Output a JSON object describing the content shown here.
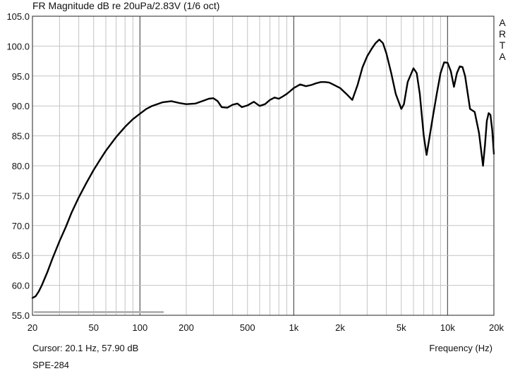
{
  "chart_data": {
    "type": "line",
    "title": "FR Magnitude dB re 20uPa/2.83V (1/6 oct)",
    "xlabel": "Frequency (Hz)",
    "ylabel": "",
    "x_scale": "log",
    "xlim": [
      20,
      20000
    ],
    "ylim": [
      55,
      105
    ],
    "grid": true,
    "y_ticks": [
      "105.0",
      "100.0",
      "95.0",
      "90.0",
      "85.0",
      "80.0",
      "75.0",
      "70.0",
      "65.0",
      "60.0",
      "55.0"
    ],
    "x_ticks": [
      {
        "value": 20,
        "label": "20"
      },
      {
        "value": 50,
        "label": "50"
      },
      {
        "value": 100,
        "label": "100"
      },
      {
        "value": 200,
        "label": "200"
      },
      {
        "value": 500,
        "label": "500"
      },
      {
        "value": 1000,
        "label": "1k"
      },
      {
        "value": 2000,
        "label": "2k"
      },
      {
        "value": 5000,
        "label": "5k"
      },
      {
        "value": 10000,
        "label": "10k"
      },
      {
        "value": 20000,
        "label": "20k"
      }
    ],
    "series": [
      {
        "color": "#000000",
        "x": [
          20,
          21,
          22,
          23,
          25,
          27,
          30,
          33,
          36,
          40,
          45,
          50,
          55,
          60,
          65,
          70,
          80,
          90,
          100,
          110,
          120,
          140,
          160,
          180,
          200,
          230,
          260,
          280,
          300,
          320,
          340,
          370,
          400,
          430,
          460,
          500,
          550,
          600,
          650,
          700,
          750,
          800,
          850,
          900,
          950,
          1000,
          1100,
          1200,
          1300,
          1400,
          1500,
          1600,
          1700,
          1800,
          2000,
          2200,
          2400,
          2600,
          2800,
          3000,
          3200,
          3400,
          3600,
          3800,
          4000,
          4300,
          4600,
          5000,
          5200,
          5500,
          6000,
          6300,
          6600,
          7000,
          7300,
          7600,
          8000,
          8500,
          9000,
          9500,
          10000,
          10500,
          11000,
          11500,
          12000,
          12500,
          13000,
          14000,
          15000,
          16000,
          17000,
          17500,
          18000,
          18500,
          19000,
          19500,
          20000
        ],
        "y": [
          57.9,
          58.2,
          59.0,
          60.0,
          62.2,
          64.5,
          67.4,
          69.8,
          72.2,
          74.7,
          77.2,
          79.3,
          81.0,
          82.5,
          83.7,
          84.8,
          86.5,
          87.8,
          88.7,
          89.5,
          90.0,
          90.6,
          90.8,
          90.5,
          90.3,
          90.4,
          90.9,
          91.2,
          91.3,
          90.8,
          89.8,
          89.7,
          90.2,
          90.4,
          89.8,
          90.1,
          90.7,
          90.0,
          90.3,
          91.0,
          91.4,
          91.2,
          91.6,
          92.0,
          92.5,
          93.0,
          93.6,
          93.3,
          93.5,
          93.8,
          94.0,
          94.0,
          93.9,
          93.6,
          93.0,
          92.0,
          91.0,
          93.5,
          96.5,
          98.3,
          99.5,
          100.5,
          101.1,
          100.5,
          98.8,
          95.5,
          92.0,
          89.5,
          90.3,
          94.0,
          96.3,
          95.5,
          92.0,
          85.0,
          81.8,
          84.5,
          88.0,
          92.0,
          95.5,
          97.3,
          97.2,
          95.8,
          93.2,
          95.5,
          96.6,
          96.5,
          95.0,
          89.5,
          89.0,
          85.5,
          80.0,
          83.5,
          87.5,
          88.8,
          88.5,
          86.0,
          82.0
        ]
      }
    ]
  },
  "cursor_readout": "Cursor: 20.1 Hz, 57.90 dB",
  "model_label": "SPE-284",
  "brand_letters": [
    "A",
    "R",
    "T",
    "A"
  ]
}
